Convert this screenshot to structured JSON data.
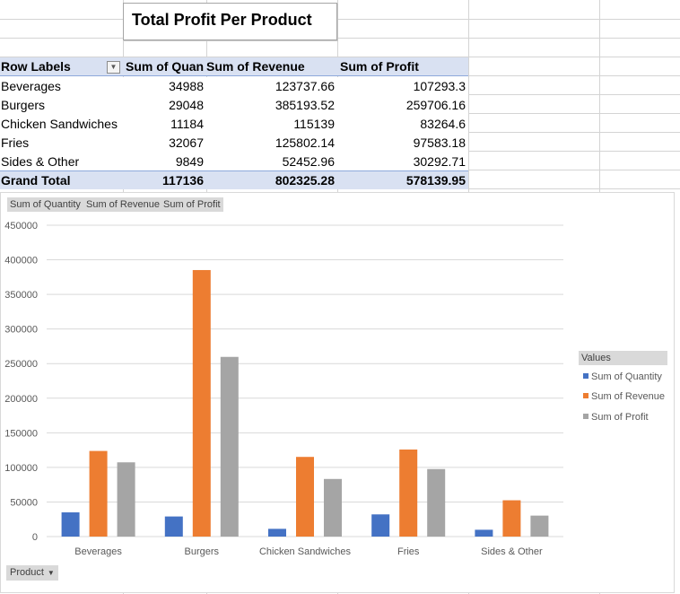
{
  "title": "Total Profit Per Product",
  "pivot": {
    "headers": [
      "Row Labels",
      "Sum of Quan",
      "Sum of Revenue",
      "Sum of Profit"
    ],
    "rows": [
      {
        "label": "Beverages",
        "quantity": "34988",
        "revenue": "123737.66",
        "profit": "107293.3"
      },
      {
        "label": "Burgers",
        "quantity": "29048",
        "revenue": "385193.52",
        "profit": "259706.16"
      },
      {
        "label": "Chicken Sandwiches",
        "quantity": "11184",
        "revenue": "115139",
        "profit": "83264.6"
      },
      {
        "label": "Fries",
        "quantity": "32067",
        "revenue": "125802.14",
        "profit": "97583.18"
      },
      {
        "label": "Sides & Other",
        "quantity": "9849",
        "revenue": "52452.96",
        "profit": "30292.71"
      }
    ],
    "total": {
      "label": "Grand Total",
      "quantity": "117136",
      "revenue": "802325.28",
      "profit": "578139.95"
    }
  },
  "field_buttons": [
    "Sum of Quantity",
    "Sum of Revenue",
    "Sum of Profit"
  ],
  "legend_title": "Values",
  "axis_button": "Product",
  "chart_data": {
    "type": "bar",
    "categories": [
      "Beverages",
      "Burgers",
      "Chicken Sandwiches",
      "Fries",
      "Sides & Other"
    ],
    "series": [
      {
        "name": "Sum of Quantity",
        "color": "#4472c4",
        "values": [
          34988,
          29048,
          11184,
          32067,
          9849
        ]
      },
      {
        "name": "Sum of Revenue",
        "color": "#ed7d31",
        "values": [
          123737.66,
          385193.52,
          115139,
          125802.14,
          52452.96
        ]
      },
      {
        "name": "Sum of Profit",
        "color": "#a5a5a5",
        "values": [
          107293.3,
          259706.16,
          83264.6,
          97583.18,
          30292.71
        ]
      }
    ],
    "ylim": [
      0,
      450000
    ],
    "yticks": [
      "0",
      "50000",
      "100000",
      "150000",
      "200000",
      "250000",
      "300000",
      "350000",
      "400000",
      "450000"
    ],
    "grid": true,
    "legend_position": "right"
  }
}
